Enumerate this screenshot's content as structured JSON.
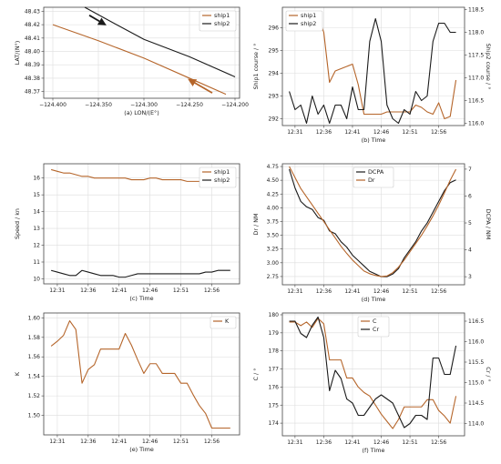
{
  "colors": {
    "brown": "#b5652a",
    "black": "#1a1a1a",
    "grid": "#dddddd",
    "axis": "#444444"
  },
  "chart_data": [
    {
      "id": "a",
      "type": "line",
      "title": "(a) LON/(E°)",
      "xlabel": "",
      "ylabel": "LAT/(N°)",
      "xlim": [
        -124.41,
        -124.195
      ],
      "ylim": [
        48.365,
        48.433
      ],
      "xticks": [
        -124.4,
        -124.35,
        -124.3,
        -124.25,
        -124.2
      ],
      "xtick_labels": [
        "−124.400",
        "−124.350",
        "−124.300",
        "−124.250",
        "−124.200"
      ],
      "yticks": [
        48.37,
        48.38,
        48.39,
        48.4,
        48.41,
        48.42,
        48.43
      ],
      "ytick_labels": [
        "48.37",
        "48.38",
        "48.39",
        "48.40",
        "48.41",
        "48.42",
        "48.43"
      ],
      "legend": {
        "position": "top-right",
        "entries": [
          "ship1",
          "ship2"
        ]
      },
      "series": [
        {
          "name": "ship1",
          "color": "brown",
          "x": [
            -124.4,
            -124.35,
            -124.3,
            -124.25,
            -124.21
          ],
          "y": [
            48.42,
            48.408,
            48.395,
            48.38,
            48.368
          ]
        },
        {
          "name": "ship2",
          "color": "black",
          "x": [
            -124.365,
            -124.33,
            -124.3,
            -124.25,
            -124.2
          ],
          "y": [
            48.433,
            48.42,
            48.409,
            48.396,
            48.381
          ]
        }
      ],
      "arrows": [
        {
          "color": "black",
          "x": [
            -124.36,
            -124.345
          ],
          "y": [
            48.427,
            48.421
          ]
        },
        {
          "color": "brown",
          "x": [
            -124.225,
            -124.248
          ],
          "y": [
            48.369,
            48.378
          ]
        }
      ]
    },
    {
      "id": "b",
      "type": "line",
      "title": "(b) Time",
      "ylabel": "Ship1 course / °",
      "ylabel_right": "Ship2 course / °",
      "xlim": [
        -1.2,
        30.5
      ],
      "ylim": [
        291.7,
        296.9
      ],
      "ylim_right": [
        115.95,
        118.55
      ],
      "xticks": [
        1,
        6,
        11,
        16,
        21,
        26
      ],
      "xtick_labels": [
        "12:31",
        "12:36",
        "12:41",
        "12:46",
        "12:51",
        "12:56"
      ],
      "yticks": [
        292,
        293,
        294,
        295,
        296
      ],
      "ytick_labels": [
        "292",
        "293",
        "294",
        "295",
        "296"
      ],
      "yticks_right": [
        116.0,
        116.5,
        117.0,
        117.5,
        118.0,
        118.5
      ],
      "ytick_labels_right": [
        "116.0",
        "116.5",
        "117.0",
        "117.5",
        "118.0",
        "118.5"
      ],
      "legend": {
        "position": "top-left",
        "entries": [
          "ship1",
          "ship2"
        ]
      },
      "series": [
        {
          "name": "ship1",
          "color": "brown",
          "axis": "left",
          "x": [
            0,
            1,
            2,
            3,
            4,
            5,
            6,
            7,
            8,
            9,
            10,
            11,
            12,
            13,
            14,
            15,
            16,
            17,
            18,
            19,
            20,
            21,
            22,
            23,
            24,
            25,
            26,
            27,
            28,
            29
          ],
          "y": [
            296.5,
            296.5,
            296.0,
            296.0,
            296.6,
            296.5,
            295.8,
            293.6,
            294.1,
            294.2,
            294.3,
            294.4,
            293.5,
            292.2,
            292.2,
            292.2,
            292.2,
            292.3,
            292.3,
            292.3,
            292.3,
            292.3,
            292.6,
            292.5,
            292.3,
            292.2,
            292.7,
            292.0,
            292.1,
            293.7
          ]
        },
        {
          "name": "ship2",
          "color": "black",
          "axis": "right",
          "x": [
            0,
            1,
            2,
            3,
            4,
            5,
            6,
            7,
            8,
            9,
            10,
            11,
            12,
            13,
            14,
            15,
            16,
            17,
            18,
            19,
            20,
            21,
            22,
            23,
            24,
            25,
            26,
            27,
            28,
            29
          ],
          "y": [
            116.7,
            116.3,
            116.4,
            116.0,
            116.6,
            116.2,
            116.4,
            116.0,
            116.4,
            116.4,
            116.1,
            116.8,
            116.3,
            116.3,
            117.8,
            118.3,
            117.8,
            116.4,
            116.1,
            116.0,
            116.3,
            116.2,
            116.7,
            116.5,
            116.6,
            117.8,
            118.2,
            118.2,
            118.0,
            118.0
          ]
        }
      ]
    },
    {
      "id": "c",
      "type": "line",
      "title": "(c) Time",
      "ylabel": "Speed / kn",
      "xlim": [
        -1.2,
        30.5
      ],
      "ylim": [
        9.7,
        16.85
      ],
      "xticks": [
        1,
        6,
        11,
        16,
        21,
        26
      ],
      "xtick_labels": [
        "12:31",
        "12:36",
        "12:41",
        "12:46",
        "12:51",
        "12:56"
      ],
      "yticks": [
        10,
        11,
        12,
        13,
        14,
        15,
        16
      ],
      "ytick_labels": [
        "10",
        "11",
        "12",
        "13",
        "14",
        "15",
        "16"
      ],
      "legend": {
        "position": "top-right",
        "entries": [
          "ship1",
          "ship2"
        ]
      },
      "series": [
        {
          "name": "ship1",
          "color": "brown",
          "x": [
            0,
            1,
            2,
            3,
            4,
            5,
            6,
            7,
            8,
            9,
            10,
            11,
            12,
            13,
            14,
            15,
            16,
            17,
            18,
            19,
            20,
            21,
            22,
            23,
            24,
            25,
            26,
            27,
            28,
            29
          ],
          "y": [
            16.5,
            16.4,
            16.3,
            16.3,
            16.2,
            16.1,
            16.1,
            16.0,
            16.0,
            16.0,
            16.0,
            16.0,
            16.0,
            15.9,
            15.9,
            15.9,
            16.0,
            16.0,
            15.9,
            15.9,
            15.9,
            15.9,
            15.8,
            15.8,
            15.8,
            15.8,
            15.7,
            15.6,
            15.6,
            15.6
          ]
        },
        {
          "name": "ship2",
          "color": "black",
          "x": [
            0,
            1,
            2,
            3,
            4,
            5,
            6,
            7,
            8,
            9,
            10,
            11,
            12,
            13,
            14,
            15,
            16,
            17,
            18,
            19,
            20,
            21,
            22,
            23,
            24,
            25,
            26,
            27,
            28,
            29
          ],
          "y": [
            10.5,
            10.4,
            10.3,
            10.2,
            10.2,
            10.5,
            10.4,
            10.3,
            10.2,
            10.2,
            10.2,
            10.1,
            10.1,
            10.2,
            10.3,
            10.3,
            10.3,
            10.3,
            10.3,
            10.3,
            10.3,
            10.3,
            10.3,
            10.3,
            10.3,
            10.4,
            10.4,
            10.5,
            10.5,
            10.5
          ]
        }
      ]
    },
    {
      "id": "d",
      "type": "line",
      "title": "(d) Time",
      "ylabel": "Dr / NM",
      "ylabel_right": "DCPA / NM",
      "xlim": [
        -1.2,
        30.5
      ],
      "ylim": [
        2.6,
        4.8
      ],
      "ylim_right": [
        2.7,
        7.2
      ],
      "xticks": [
        1,
        6,
        11,
        16,
        21,
        26
      ],
      "xtick_labels": [
        "12:31",
        "12:36",
        "12:41",
        "12:46",
        "12:51",
        "12:56"
      ],
      "yticks": [
        2.75,
        3.0,
        3.25,
        3.5,
        3.75,
        4.0,
        4.25,
        4.5,
        4.75
      ],
      "ytick_labels": [
        "2.75",
        "3.00",
        "3.25",
        "3.50",
        "3.75",
        "4.00",
        "4.25",
        "4.50",
        "4.75"
      ],
      "yticks_right": [
        3,
        4,
        5,
        6,
        7
      ],
      "ytick_labels_right": [
        "3",
        "4",
        "5",
        "6",
        "7"
      ],
      "legend": {
        "position": "top-center",
        "entries": [
          "DCPA",
          "Dr"
        ]
      },
      "series": [
        {
          "name": "DCPA",
          "color": "black",
          "axis": "right",
          "x": [
            0,
            1,
            2,
            3,
            4,
            5,
            6,
            7,
            8,
            9,
            10,
            11,
            12,
            13,
            14,
            15,
            16,
            17,
            18,
            19,
            20,
            21,
            22,
            23,
            24,
            25,
            26,
            27,
            28,
            29
          ],
          "y": [
            7.0,
            6.3,
            5.8,
            5.6,
            5.5,
            5.2,
            5.1,
            4.7,
            4.6,
            4.3,
            4.1,
            3.8,
            3.6,
            3.4,
            3.2,
            3.1,
            3.0,
            3.0,
            3.1,
            3.3,
            3.7,
            4.0,
            4.3,
            4.7,
            5.0,
            5.4,
            5.8,
            6.2,
            6.5,
            6.6
          ]
        },
        {
          "name": "Dr",
          "color": "brown",
          "axis": "left",
          "x": [
            0,
            1,
            2,
            3,
            4,
            5,
            6,
            7,
            8,
            9,
            10,
            11,
            12,
            13,
            14,
            15,
            16,
            17,
            18,
            19,
            20,
            21,
            22,
            23,
            24,
            25,
            26,
            27,
            28,
            29
          ],
          "y": [
            4.75,
            4.55,
            4.35,
            4.2,
            4.05,
            3.9,
            3.75,
            3.6,
            3.45,
            3.3,
            3.17,
            3.05,
            2.95,
            2.85,
            2.8,
            2.77,
            2.75,
            2.76,
            2.82,
            2.92,
            3.05,
            3.2,
            3.35,
            3.5,
            3.67,
            3.85,
            4.05,
            4.27,
            4.5,
            4.7
          ]
        }
      ]
    },
    {
      "id": "e",
      "type": "line",
      "title": "(e) Time",
      "ylabel": "K",
      "xlim": [
        -1.2,
        30.5
      ],
      "ylim": [
        1.48,
        1.605
      ],
      "xticks": [
        1,
        6,
        11,
        16,
        21,
        26
      ],
      "xtick_labels": [
        "12:31",
        "12:36",
        "12:41",
        "12:46",
        "12:51",
        "12:56"
      ],
      "yticks": [
        1.5,
        1.52,
        1.54,
        1.56,
        1.58,
        1.6
      ],
      "ytick_labels": [
        "1.50",
        "1.52",
        "1.54",
        "1.56",
        "1.58",
        "1.60"
      ],
      "legend": {
        "position": "top-right",
        "entries": [
          "K"
        ]
      },
      "series": [
        {
          "name": "K",
          "color": "brown",
          "x": [
            0,
            1,
            2,
            3,
            4,
            5,
            6,
            7,
            8,
            9,
            10,
            11,
            12,
            13,
            14,
            15,
            16,
            17,
            18,
            19,
            20,
            21,
            22,
            23,
            24,
            25,
            26,
            27,
            28,
            29
          ],
          "y": [
            1.571,
            1.576,
            1.582,
            1.597,
            1.588,
            1.533,
            1.547,
            1.552,
            1.568,
            1.568,
            1.568,
            1.568,
            1.584,
            1.572,
            1.557,
            1.543,
            1.553,
            1.553,
            1.543,
            1.543,
            1.543,
            1.533,
            1.533,
            1.521,
            1.51,
            1.502,
            1.487,
            1.487,
            1.487,
            1.487
          ]
        }
      ]
    },
    {
      "id": "f",
      "type": "line",
      "title": "(f) Time",
      "ylabel": "C / °",
      "ylabel_right": "Cr / °",
      "xlim": [
        -1.2,
        30.5
      ],
      "ylim": [
        173.3,
        180.1
      ],
      "ylim_right": [
        113.7,
        116.7
      ],
      "xticks": [
        1,
        6,
        11,
        16,
        21,
        26
      ],
      "xtick_labels": [
        "12:31",
        "12:36",
        "12:41",
        "12:46",
        "12:51",
        "12:56"
      ],
      "yticks": [
        174,
        175,
        176,
        177,
        178,
        179,
        180
      ],
      "ytick_labels": [
        "174",
        "175",
        "176",
        "177",
        "178",
        "179",
        "180"
      ],
      "yticks_right": [
        114.0,
        114.5,
        115.0,
        115.5,
        116.0,
        116.5
      ],
      "ytick_labels_right": [
        "114.0",
        "114.5",
        "115.0",
        "115.5",
        "116.0",
        "116.5"
      ],
      "legend": {
        "position": "top-center",
        "entries": [
          "C",
          "Cr"
        ]
      },
      "series": [
        {
          "name": "C",
          "color": "brown",
          "axis": "left",
          "x": [
            0,
            1,
            2,
            3,
            4,
            5,
            6,
            7,
            8,
            9,
            10,
            11,
            12,
            13,
            14,
            15,
            16,
            17,
            18,
            19,
            20,
            21,
            22,
            23,
            24,
            25,
            26,
            27,
            28,
            29
          ],
          "y": [
            179.6,
            179.6,
            179.4,
            179.6,
            179.3,
            179.8,
            179.5,
            177.5,
            177.5,
            177.5,
            176.5,
            176.5,
            176.0,
            175.7,
            175.5,
            175.0,
            174.5,
            174.1,
            173.7,
            174.2,
            174.9,
            174.9,
            174.9,
            174.9,
            175.3,
            175.3,
            174.7,
            174.4,
            174.0,
            175.5
          ]
        },
        {
          "name": "Cr",
          "color": "black",
          "axis": "right",
          "x": [
            0,
            1,
            2,
            3,
            4,
            5,
            6,
            7,
            8,
            9,
            10,
            11,
            12,
            13,
            14,
            15,
            16,
            17,
            18,
            19,
            20,
            21,
            22,
            23,
            24,
            25,
            26,
            27,
            28,
            29
          ],
          "y": [
            116.5,
            116.5,
            116.2,
            116.1,
            116.4,
            116.6,
            116.1,
            114.8,
            115.3,
            115.1,
            114.6,
            114.5,
            114.2,
            114.2,
            114.4,
            114.6,
            114.7,
            114.6,
            114.5,
            114.2,
            113.9,
            114.0,
            114.2,
            114.2,
            114.1,
            115.6,
            115.6,
            115.2,
            115.2,
            115.9
          ]
        }
      ]
    }
  ]
}
